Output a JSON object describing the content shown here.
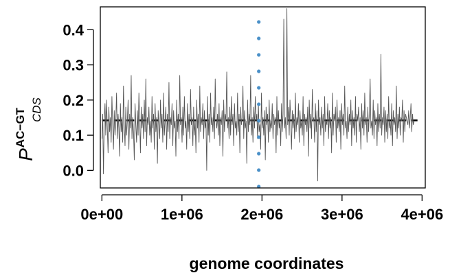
{
  "chart_data": {
    "type": "line",
    "xlabel": "genome coordinates",
    "ylabel": {
      "main": "P",
      "superscript": "AC−GT",
      "subscript": "CDS"
    },
    "xlim": [
      -20000,
      4040000
    ],
    "ylim": [
      -0.05,
      0.465
    ],
    "x_ticks": [
      {
        "value": 0,
        "label": "0e+00"
      },
      {
        "value": 1000000,
        "label": "1e+06"
      },
      {
        "value": 2000000,
        "label": "2e+06"
      },
      {
        "value": 3000000,
        "label": "3e+06"
      },
      {
        "value": 4000000,
        "label": "4e+06"
      }
    ],
    "y_ticks": [
      {
        "value": 0.0,
        "label": "0.0"
      },
      {
        "value": 0.1,
        "label": "0.1"
      },
      {
        "value": 0.2,
        "label": "0.2"
      },
      {
        "value": 0.3,
        "label": "0.3"
      },
      {
        "value": 0.4,
        "label": "0.4"
      }
    ],
    "mean_line": {
      "y": 0.142,
      "style": "dashed",
      "color": "#000000"
    },
    "marker_line": {
      "x": 1960000,
      "style": "dotted",
      "color": "#4a90c8"
    },
    "series_color": "#555555",
    "series": {
      "x_start": 0,
      "x_end": 3900000,
      "y": [
        0.09,
        0.16,
        -0.01,
        0.14,
        0.19,
        0.1,
        0.2,
        0.12,
        0.05,
        0.18,
        0.11,
        0.15,
        0.08,
        0.21,
        0.13,
        0.06,
        0.17,
        0.1,
        0.14,
        0.22,
        0.09,
        0.16,
        0.12,
        0.04,
        0.19,
        0.11,
        0.15,
        0.08,
        0.24,
        0.13,
        0.07,
        0.18,
        0.1,
        0.14,
        0.2,
        0.06,
        0.16,
        0.12,
        0.27,
        0.09,
        0.15,
        0.11,
        0.03,
        0.19,
        0.13,
        0.08,
        0.17,
        0.1,
        0.22,
        0.14,
        0.05,
        0.18,
        0.12,
        0.16,
        0.09,
        0.2,
        0.11,
        0.26,
        0.07,
        0.15,
        0.13,
        0.18,
        0.1,
        0.14,
        0.08,
        0.21,
        0.12,
        0.16,
        0.06,
        0.19,
        0.11,
        0.15,
        0.02,
        0.17,
        0.13,
        0.09,
        0.2,
        0.12,
        0.16,
        0.08,
        0.22,
        0.1,
        0.14,
        0.18,
        0.06,
        0.16,
        0.11,
        0.25,
        0.09,
        0.15,
        0.13,
        0.19,
        0.07,
        0.17,
        0.12,
        0.14,
        0.04,
        0.2,
        0.11,
        0.16,
        0.09,
        0.27,
        0.13,
        0.15,
        0.08,
        0.18,
        0.1,
        0.21,
        0.12,
        0.14,
        0.06,
        0.19,
        0.11,
        0.16,
        0.09,
        0.23,
        0.13,
        0.15,
        0.07,
        0.18,
        0.1,
        0.14,
        0.05,
        0.2,
        0.12,
        0.16,
        0.08,
        0.24,
        0.11,
        0.15,
        0.13,
        0.19,
        0.09,
        0.17,
        0.12,
        0.14,
        0.0,
        0.21,
        0.1,
        0.16,
        0.08,
        0.22,
        0.13,
        0.15,
        0.11,
        0.18,
        0.09,
        0.26,
        0.14,
        0.12,
        0.16,
        0.1,
        0.19,
        0.07,
        0.15,
        0.13,
        0.17,
        0.04,
        0.2,
        0.11,
        0.16,
        0.14,
        0.28,
        0.12,
        0.15,
        0.09,
        0.18,
        0.1,
        0.21,
        0.13,
        0.16,
        0.07,
        0.19,
        0.12,
        0.14,
        0.1,
        0.22,
        0.11,
        0.16,
        0.05,
        0.18,
        0.13,
        0.15,
        0.24,
        0.09,
        0.17,
        0.12,
        0.14,
        0.02,
        0.2,
        0.11,
        0.16,
        0.13,
        0.27,
        0.1,
        0.15,
        0.08,
        0.18,
        0.12,
        0.21,
        0.14,
        0.16,
        0.09,
        0.19,
        0.11,
        0.13,
        0.06,
        0.22,
        0.12,
        0.15,
        0.1,
        0.17,
        0.03,
        0.18,
        0.13,
        0.16,
        0.08,
        0.2,
        0.11,
        0.14,
        0.12,
        0.19,
        0.09,
        0.16,
        0.13,
        0.15,
        0.05,
        0.21,
        0.1,
        0.17,
        0.12,
        0.14,
        0.07,
        0.19,
        0.11,
        0.16,
        0.43,
        0.12,
        0.15,
        0.09,
        0.46,
        0.13,
        0.18,
        0.1,
        0.2,
        0.14,
        0.06,
        0.17,
        0.12,
        0.16,
        0.09,
        0.22,
        0.11,
        0.15,
        0.13,
        0.19,
        0.08,
        0.17,
        0.12,
        0.14,
        0.1,
        0.21,
        0.07,
        0.16,
        0.13,
        0.15,
        0.11,
        0.18,
        0.04,
        0.2,
        0.12,
        0.16,
        0.09,
        0.23,
        0.14,
        0.15,
        0.08,
        0.19,
        0.11,
        0.17,
        -0.03,
        0.2,
        0.13,
        0.15,
        0.1,
        0.18,
        0.12,
        0.16,
        0.07,
        0.21,
        0.11,
        0.14,
        0.13,
        0.19,
        0.09,
        0.17,
        0.12,
        0.15,
        0.05,
        0.22,
        0.1,
        0.16,
        0.14,
        0.18,
        0.08,
        0.2,
        0.12,
        0.15,
        0.11,
        0.17,
        0.06,
        0.19,
        0.13,
        0.16,
        0.1,
        0.24,
        0.12,
        0.14,
        0.09,
        0.18,
        0.11,
        0.16,
        0.13,
        0.2,
        0.07,
        0.17,
        0.12,
        0.15,
        0.1,
        0.21,
        0.08,
        0.16,
        0.14,
        0.18,
        0.11,
        0.15,
        0.06,
        0.19,
        0.12,
        0.17,
        0.1,
        0.22,
        0.13,
        0.15,
        0.08,
        0.18,
        0.11,
        0.16,
        0.26,
        0.12,
        0.14,
        0.1,
        0.2,
        0.09,
        0.17,
        0.13,
        0.15,
        0.07,
        0.19,
        0.11,
        0.16,
        0.12,
        0.33,
        0.1,
        0.15,
        0.13,
        0.18,
        0.08,
        0.17,
        0.11,
        0.16,
        0.09,
        0.21,
        0.12,
        0.14,
        0.1,
        0.19,
        0.07,
        0.17,
        0.13,
        0.15,
        0.11,
        0.24,
        0.09,
        0.16,
        0.12,
        0.18,
        0.1,
        0.15,
        0.14,
        0.2,
        0.08,
        0.17,
        0.11,
        0.16,
        0.15,
        0.14,
        0.13,
        0.17,
        0.12,
        0.15,
        0.19,
        0.11,
        0.16,
        0.13,
        0.14
      ]
    },
    "grid": false,
    "legend": "none"
  }
}
